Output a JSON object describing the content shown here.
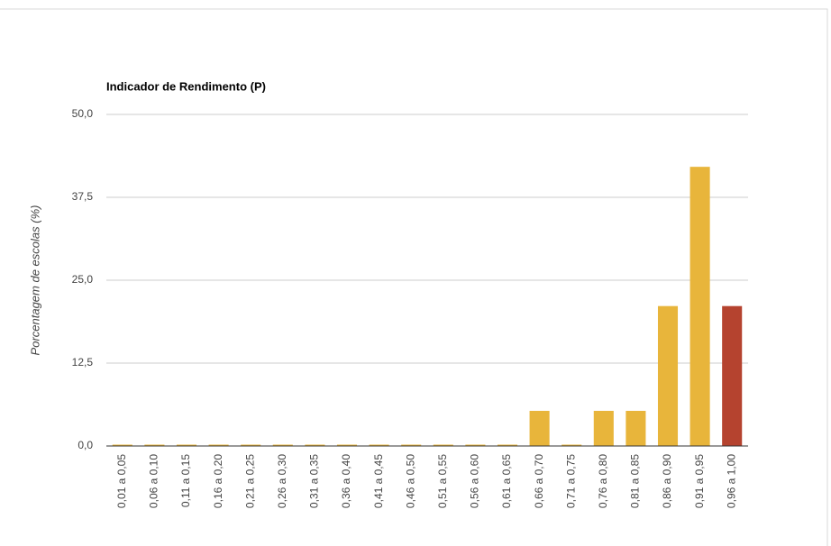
{
  "chart_data": {
    "type": "bar",
    "title": "Indicador de Rendimento (P)",
    "y_label": "Porcentagem de escolas (%)",
    "categories": [
      "0,01 a 0,05",
      "0,06 a 0,10",
      "0,11 a 0,15",
      "0,16 a 0,20",
      "0,21 a 0,25",
      "0,26 a 0,30",
      "0,31 a 0,35",
      "0,36 a 0,40",
      "0,41 a 0,45",
      "0,46 a 0,50",
      "0,51 a 0,55",
      "0,56 a 0,60",
      "0,61 a 0,65",
      "0,66 a 0,70",
      "0,71 a 0,75",
      "0,76 a 0,80",
      "0,81 a 0,85",
      "0,86 a 0,90",
      "0,91 a 0,95",
      "0,96 a 1,00"
    ],
    "values": [
      0,
      0,
      0,
      0,
      0,
      0,
      0,
      0,
      0,
      0,
      0,
      0,
      0,
      5.3,
      0,
      5.3,
      5.3,
      21.1,
      42.1,
      21.1
    ],
    "colors": [
      "#e8b53b",
      "#e8b53b",
      "#e8b53b",
      "#e8b53b",
      "#e8b53b",
      "#e8b53b",
      "#e8b53b",
      "#e8b53b",
      "#e8b53b",
      "#e8b53b",
      "#e8b53b",
      "#e8b53b",
      "#e8b53b",
      "#e8b53b",
      "#e8b53b",
      "#e8b53b",
      "#e8b53b",
      "#e8b53b",
      "#e8b53b",
      "#b5432f"
    ],
    "ylim": [
      0,
      50
    ],
    "yticks": [
      {
        "value": 0,
        "label": "0,0"
      },
      {
        "value": 12.5,
        "label": "12,5"
      },
      {
        "value": 25,
        "label": "25,0"
      },
      {
        "value": 37.5,
        "label": "37,5"
      },
      {
        "value": 50,
        "label": "50,0"
      }
    ],
    "grid": true
  }
}
